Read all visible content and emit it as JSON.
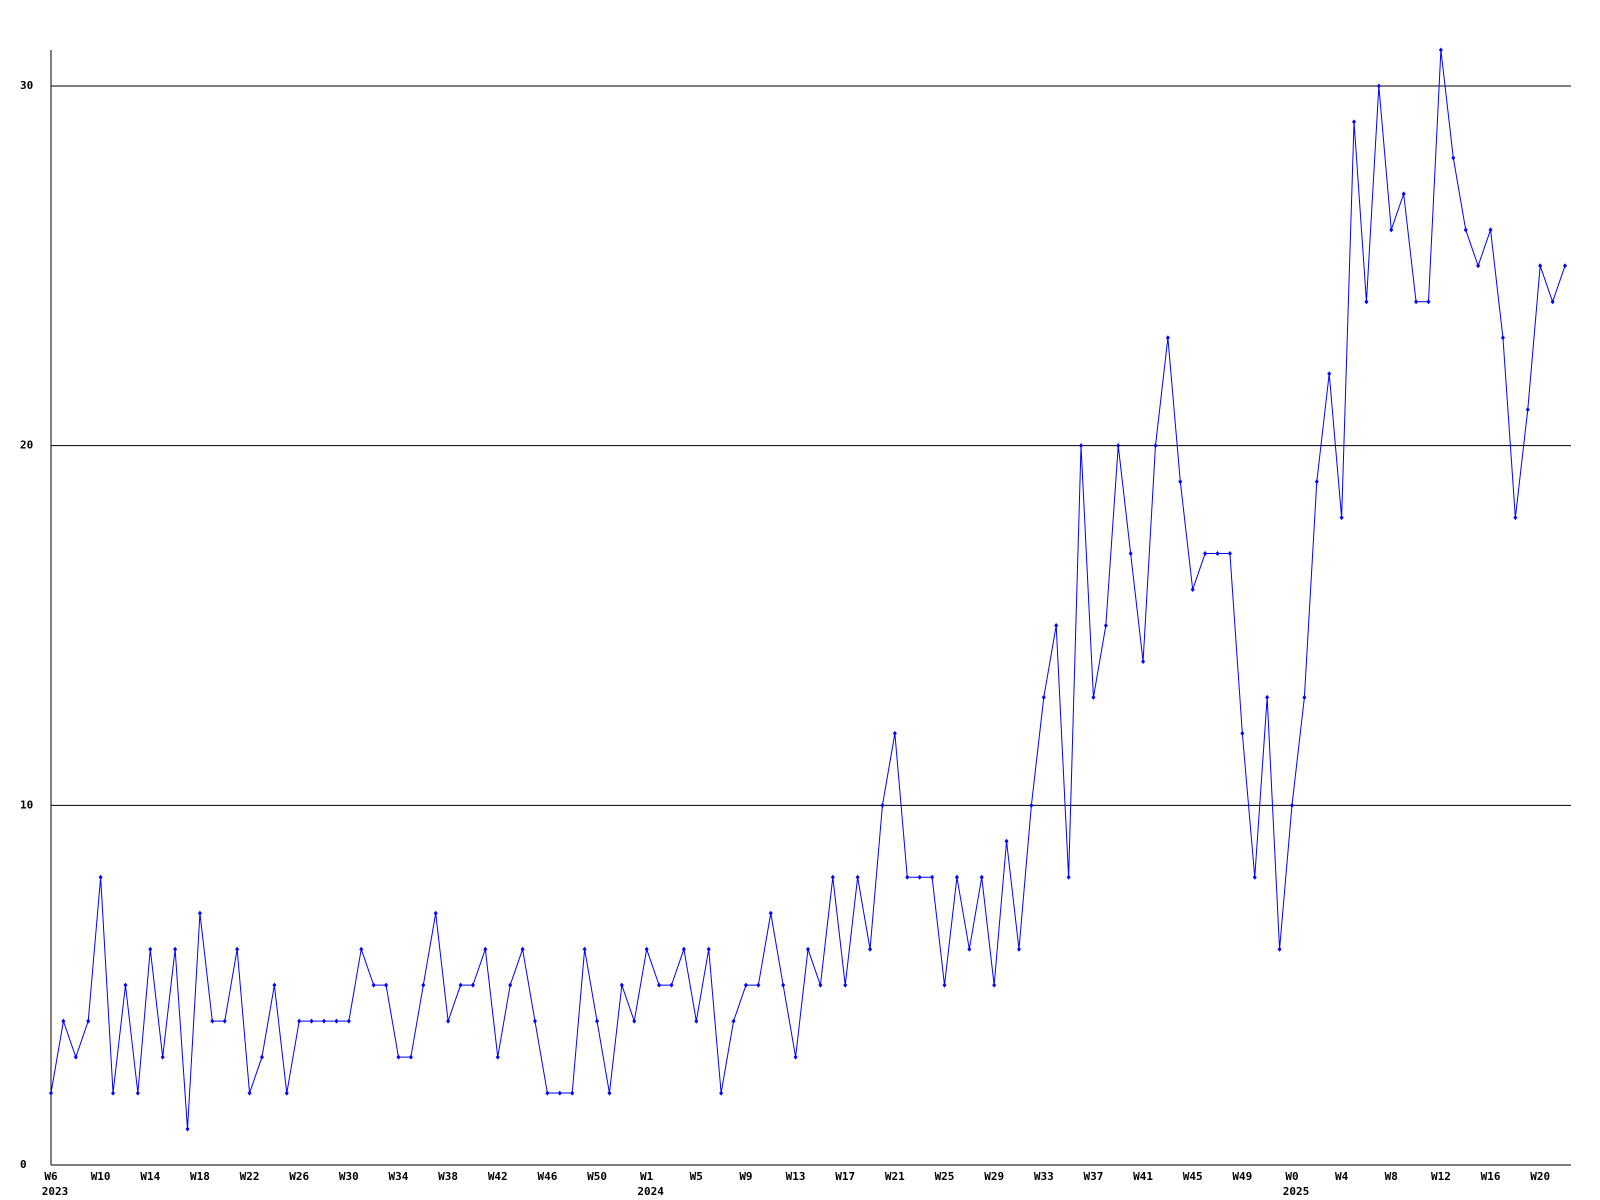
{
  "chart_data": {
    "type": "line",
    "categories": [
      "W6",
      null,
      null,
      null,
      "W10",
      null,
      null,
      null,
      "W14",
      null,
      null,
      null,
      "W18",
      null,
      null,
      null,
      "W22",
      null,
      null,
      null,
      "W26",
      null,
      null,
      null,
      "W30",
      null,
      null,
      null,
      "W34",
      null,
      null,
      null,
      "W38",
      null,
      null,
      null,
      "W42",
      null,
      null,
      null,
      "W46",
      null,
      null,
      null,
      "W50",
      null,
      null,
      null,
      "W1",
      null,
      null,
      null,
      "W5",
      null,
      null,
      null,
      "W9",
      null,
      null,
      null,
      "W13",
      null,
      null,
      null,
      "W17",
      null,
      null,
      null,
      "W21",
      null,
      null,
      null,
      "W25",
      null,
      null,
      null,
      "W29",
      null,
      null,
      null,
      "W33",
      null,
      null,
      null,
      "W37",
      null,
      null,
      null,
      "W41",
      null,
      null,
      null,
      "W45",
      null,
      null,
      null,
      "W49",
      null,
      null,
      null,
      "W0",
      null,
      null,
      null,
      "W4",
      null,
      null,
      null,
      "W8",
      null,
      null,
      null,
      "W12",
      null,
      null,
      null,
      "W16",
      null,
      null,
      null,
      "W20",
      null,
      null
    ],
    "year_categories": [
      "2023",
      null,
      null,
      null,
      null,
      null,
      null,
      null,
      null,
      null,
      null,
      null,
      null,
      null,
      null,
      null,
      null,
      null,
      null,
      null,
      null,
      null,
      null,
      null,
      null,
      null,
      null,
      null,
      null,
      null,
      null,
      null,
      null,
      null,
      null,
      null,
      null,
      null,
      null,
      null,
      null,
      null,
      null,
      null,
      null,
      null,
      null,
      null,
      "2024",
      null,
      null,
      null,
      null,
      null,
      null,
      null,
      null,
      null,
      null,
      null,
      null,
      null,
      null,
      null,
      null,
      null,
      null,
      null,
      null,
      null,
      null,
      null,
      null,
      null,
      null,
      null,
      null,
      null,
      null,
      null,
      null,
      null,
      null,
      null,
      null,
      null,
      null,
      null,
      null,
      null,
      null,
      null,
      null,
      null,
      null,
      null,
      null,
      null,
      null,
      null,
      "2025",
      null,
      null,
      null,
      null,
      null,
      null,
      null,
      null,
      null,
      null,
      null,
      null,
      null,
      null,
      null,
      null,
      null,
      null,
      null,
      null,
      null,
      null
    ],
    "values": [
      2,
      4,
      3,
      4,
      8,
      2,
      5,
      2,
      6,
      3,
      6,
      1,
      7,
      4,
      4,
      6,
      2,
      3,
      5,
      2,
      4,
      4,
      4,
      4,
      4,
      6,
      5,
      5,
      3,
      3,
      5,
      7,
      4,
      5,
      5,
      6,
      3,
      5,
      6,
      4,
      2,
      2,
      2,
      6,
      4,
      2,
      5,
      4,
      6,
      5,
      5,
      6,
      4,
      6,
      2,
      4,
      5,
      5,
      7,
      5,
      3,
      6,
      5,
      8,
      5,
      8,
      6,
      10,
      12,
      8,
      8,
      8,
      5,
      8,
      6,
      8,
      5,
      9,
      6,
      10,
      13,
      15,
      8,
      20,
      13,
      15,
      20,
      17,
      14,
      20,
      23,
      19,
      16,
      17,
      17,
      17,
      12,
      8,
      13,
      6,
      10,
      13,
      19,
      22,
      18,
      29,
      24,
      30,
      26,
      27,
      24,
      24,
      31,
      28,
      26,
      25,
      26,
      23,
      18,
      21,
      25,
      24,
      25
    ],
    "color": "#0000ff",
    "ylim": [
      0,
      31
    ],
    "yticks": [
      0,
      10,
      20,
      30
    ],
    "grid": true
  }
}
